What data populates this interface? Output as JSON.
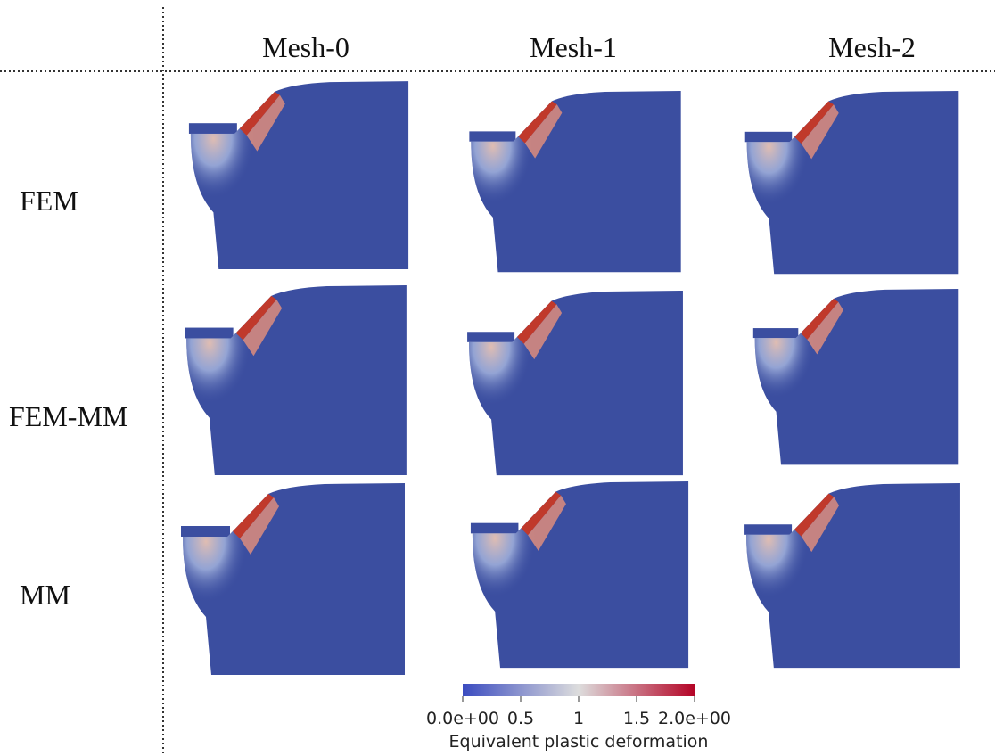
{
  "header": {
    "columns": [
      "Mesh-0",
      "Mesh-1",
      "Mesh-2"
    ]
  },
  "rows": [
    "FEM",
    "FEM-MM",
    "MM"
  ],
  "colorbar": {
    "label": "Equivalent plastic deformation",
    "lim": [
      0,
      2
    ],
    "ticks": [
      {
        "value": 0,
        "label": "0.0e+00"
      },
      0.5,
      1,
      1.5,
      {
        "value": 2,
        "label": "2.0e+00"
      }
    ]
  }
}
